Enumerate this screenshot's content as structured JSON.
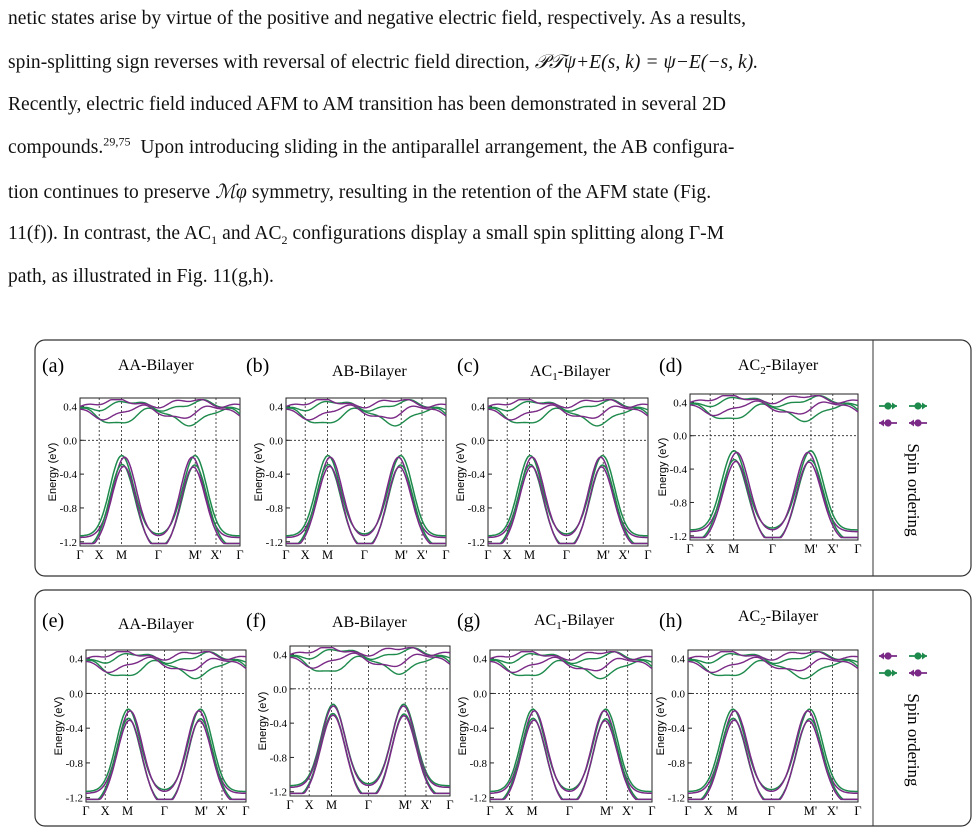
{
  "paragraph": {
    "line1": "netic states arise by virtue of the positive and negative electric field, respectively. As a results,",
    "line2_a": "spin-splitting sign reverses with reversal of electric field direction, ",
    "line2_eq": "𝒫𝒯ψ+E(s, k) = ψ−E(−s, k).",
    "line3": "Recently, electric field induced AFM to AM transition has been demonstrated in several 2D",
    "line4_a": "compounds.",
    "line4_ref": "29,75",
    "line4_b": "  Upon introducing sliding in the antiparallel arrangement, the AB configura-",
    "line5_a": "tion continues to preserve ",
    "line5_sym": "ℳφ",
    "line5_b": " symmetry, resulting in the retention of the AFM state (Fig.",
    "line6_a": "11(f)). In contrast, the AC",
    "line6_s1": "1",
    "line6_b": " and AC",
    "line6_s2": "2",
    "line6_c": " configurations display a small spin splitting along Γ-M",
    "line7": "path, as illustrated in Fig. 11(g,h)."
  },
  "figure": {
    "ylabel": "Energy (eV)",
    "y_ticks": [
      "0.4",
      "0.0",
      "-0.4",
      "-0.8",
      "-1.2"
    ],
    "k_ticks": [
      "Γ",
      "X",
      "M",
      "Γ",
      "M'",
      "X'",
      "Γ"
    ],
    "spin_label": "Spin ordering",
    "colors": {
      "green": "#1e8a4c",
      "purple": "#7a2a86",
      "frame": "#333333"
    },
    "rows": [
      {
        "panels": [
          {
            "tag": "(a)",
            "title": "AA-Bilayer",
            "sub": ""
          },
          {
            "tag": "(b)",
            "title": "AB-Bilayer",
            "sub": ""
          },
          {
            "tag": "(c)",
            "title": "AC",
            "sub": "1",
            "suffix": "-Bilayer"
          },
          {
            "tag": "(d)",
            "title": "AC",
            "sub": "2",
            "suffix": "-Bilayer"
          }
        ]
      },
      {
        "panels": [
          {
            "tag": "(e)",
            "title": "AA-Bilayer",
            "sub": ""
          },
          {
            "tag": "(f)",
            "title": "AB-Bilayer",
            "sub": ""
          },
          {
            "tag": "(g)",
            "title": "AC",
            "sub": "1",
            "suffix": "-Bilayer"
          },
          {
            "tag": "(h)",
            "title": "AC",
            "sub": "2",
            "suffix": "-Bilayer"
          }
        ]
      }
    ]
  }
}
